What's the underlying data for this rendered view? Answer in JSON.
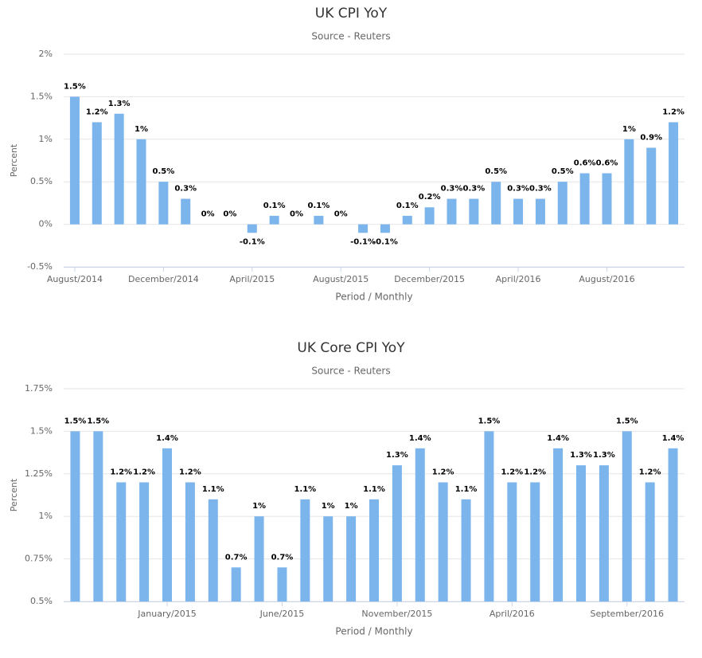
{
  "chart_data": [
    {
      "type": "bar",
      "title": "UK CPI YoY",
      "subtitle": "Source - Reuters",
      "x_label": "Period / Monthly",
      "y_label": "Percent",
      "color": "#7cb5ec",
      "grid": true,
      "categories": [
        "August/2014",
        null,
        null,
        null,
        "December/2014",
        null,
        null,
        null,
        "April/2015",
        null,
        null,
        null,
        "August/2015",
        null,
        null,
        null,
        "December/2015",
        null,
        null,
        null,
        "April/2016",
        null,
        null,
        null,
        "August/2016",
        null,
        null,
        null
      ],
      "values": [
        1.5,
        1.2,
        1.3,
        1,
        0.5,
        0.3,
        0,
        0,
        -0.1,
        0.1,
        0,
        0.1,
        0,
        -0.1,
        -0.1,
        0.1,
        0.2,
        0.3,
        0.3,
        0.5,
        0.3,
        0.3,
        0.5,
        0.6,
        0.6,
        1,
        0.9,
        1.2
      ],
      "value_labels": [
        "1.5%",
        "1.2%",
        "1.3%",
        "1%",
        "0.5%",
        "0.3%",
        "0%",
        "0%",
        "-0.1%",
        "0.1%",
        "0%",
        "0.1%",
        "0%",
        "-0.1%",
        "-0.1%",
        "0.1%",
        "0.2%",
        "0.3%",
        "0.3%",
        "0.5%",
        "0.3%",
        "0.3%",
        "0.5%",
        "0.6%",
        "0.6%",
        "1%",
        "0.9%",
        "1.2%"
      ],
      "ylim": [
        -0.5,
        2
      ],
      "yticks": [
        {
          "value": -0.5,
          "label": "-0.5%"
        },
        {
          "value": 0,
          "label": "0%"
        },
        {
          "value": 0.5,
          "label": "0.5%"
        },
        {
          "value": 1,
          "label": "1%"
        },
        {
          "value": 1.5,
          "label": "1.5%"
        },
        {
          "value": 2,
          "label": "2%"
        }
      ]
    },
    {
      "type": "bar",
      "title": "UK Core CPI YoY",
      "subtitle": "Source - Reuters",
      "x_label": "Period / Monthly",
      "y_label": "Percent",
      "color": "#7cb5ec",
      "grid": true,
      "categories": [
        null,
        null,
        null,
        null,
        "January/2015",
        null,
        null,
        null,
        null,
        "June/2015",
        null,
        null,
        null,
        null,
        "November/2015",
        null,
        null,
        null,
        null,
        "April/2016",
        null,
        null,
        null,
        null,
        "September/2016",
        null,
        null
      ],
      "values": [
        1.5,
        1.5,
        1.2,
        1.2,
        1.4,
        1.2,
        1.1,
        0.7,
        1,
        0.7,
        1.1,
        1,
        1,
        1.1,
        1.3,
        1.4,
        1.2,
        1.1,
        1.5,
        1.2,
        1.2,
        1.4,
        1.3,
        1.3,
        1.5,
        1.2,
        1.4
      ],
      "value_labels": [
        "1.5%",
        "1.5%",
        "1.2%",
        "1.2%",
        "1.4%",
        "1.2%",
        "1.1%",
        "0.7%",
        "1%",
        "0.7%",
        "1.1%",
        "1%",
        "1%",
        "1.1%",
        "1.3%",
        "1.4%",
        "1.2%",
        "1.1%",
        "1.5%",
        "1.2%",
        "1.2%",
        "1.4%",
        "1.3%",
        "1.3%",
        "1.5%",
        "1.2%",
        "1.4%"
      ],
      "ylim": [
        0.5,
        1.75
      ],
      "yticks": [
        {
          "value": 0.5,
          "label": "0.5%"
        },
        {
          "value": 0.75,
          "label": "0.75%"
        },
        {
          "value": 1,
          "label": "1%"
        },
        {
          "value": 1.25,
          "label": "1.25%"
        },
        {
          "value": 1.5,
          "label": "1.5%"
        },
        {
          "value": 1.75,
          "label": "1.75%"
        }
      ]
    }
  ]
}
